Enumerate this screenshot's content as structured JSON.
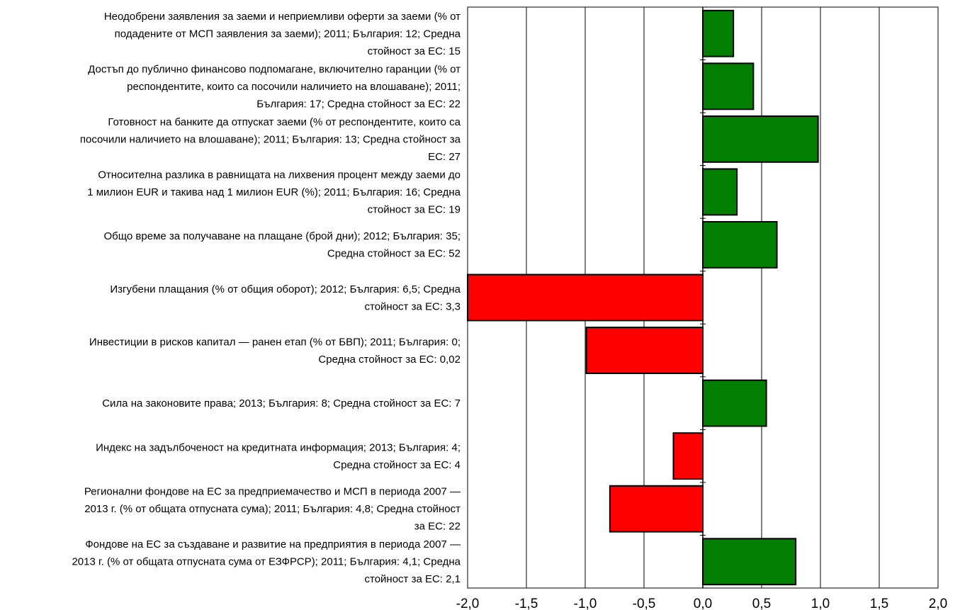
{
  "chart_data": {
    "type": "bar",
    "orientation": "horizontal",
    "categories": [
      "Неодобрени заявления за заеми и неприемливи оферти за заеми (% от подадените от МСП заявления за заеми); 2011; България: 12; Средна стойност за ЕС: 15",
      "Достъп до публично финансово подпомагане, включително гаранции (% от респондентите, които са посочили наличието на влошаване); 2011; България: 17; Средна стойност за ЕС: 22",
      "Готовност на банките да отпускат заеми (% от респондентите, които са посочили наличието на влошаване); 2011; България: 13; Средна стойност за ЕС: 27",
      "Относителна разлика в равнищата на лихвения процент между заеми до 1 милион EUR и такива над 1 милион EUR (%); 2011; България: 16; Средна стойност за ЕС: 19",
      "Общо време за получаване на плащане (брой дни); 2012; България: 35; Средна стойност за ЕС: 52",
      "Изгубени плащания (% от общия оборот); 2012; България: 6,5; Средна стойност за ЕС: 3,3",
      "Инвестиции в рисков капитал — ранен етап (% от БВП); 2011; България: 0; Средна стойност за ЕС: 0,02",
      "Сила на законовите права; 2013; България: 8; Средна стойност за ЕС: 7",
      "Индекс на задълбоченост на кредитната информация; 2013; България: 4; Средна стойност за ЕС: 4",
      "Регионални фондове на ЕС за предприемачество и МСП в периода 2007 — 2013 г. (% от общата отпусната сума); 2011; България: 4,8; Средна стойност за ЕС: 22",
      "Фондове на ЕС за създаване и развитие на предприятия в периода 2007 — 2013 г. (% от общата отпусната сума от ЕЗФРСР); 2011; България: 4,1; Средна стойност за ЕС: 2,1"
    ],
    "category_lines": [
      [
        "Неодобрени заявления за заеми и неприемливи оферти за заеми (% от",
        "подадените от МСП заявления за заеми); 2011; България: 12; Средна",
        "стойност за ЕС: 15"
      ],
      [
        "Достъп до публично финансово подпомагане, включително гаранции (% от",
        "респондентите, които са посочили наличието на влошаване); 2011;",
        "България: 17; Средна стойност за ЕС: 22"
      ],
      [
        "Готовност на банките да отпускат заеми (% от респондентите, които са",
        "посочили наличието на влошаване); 2011; България: 13; Средна стойност за",
        "ЕС: 27"
      ],
      [
        "Относителна разлика в равнищата на лихвения процент между заеми до",
        "1 милион EUR и такива над 1 милион EUR (%); 2011; България: 16; Средна",
        "стойност за ЕС: 19"
      ],
      [
        "Общо време за получаване на плащане (брой дни); 2012; България: 35;",
        "Средна стойност за ЕС: 52"
      ],
      [
        "Изгубени плащания (% от общия оборот); 2012; България: 6,5; Средна",
        "стойност за ЕС: 3,3"
      ],
      [
        "Инвестиции в рисков капитал — ранен етап (% от БВП); 2011; България: 0;",
        "Средна стойност за ЕС: 0,02"
      ],
      [
        "Сила на законовите права; 2013; България: 8; Средна стойност за ЕС: 7"
      ],
      [
        "Индекс на задълбоченост на кредитната информация; 2013; България: 4;",
        "Средна стойност за ЕС: 4"
      ],
      [
        "Регионални фондове на ЕС за предприемачество и МСП в периода 2007 —",
        "2013 г. (% от общата отпусната сума); 2011; България: 4,8; Средна стойност",
        "за ЕС: 22"
      ],
      [
        "Фондове на ЕС за създаване и развитие на предприятия в периода 2007 —",
        "2013 г. (% от общата отпусната сума от ЕЗФРСР); 2011; България: 4,1; Средна",
        "стойност за ЕС: 2,1"
      ]
    ],
    "values": [
      0.26,
      0.43,
      0.98,
      0.29,
      0.63,
      -2.0,
      -0.99,
      0.54,
      -0.25,
      -0.79,
      0.79
    ],
    "xlim": [
      -2.0,
      2.0
    ],
    "xticks": [
      -2.0,
      -1.5,
      -1.0,
      -0.5,
      0.0,
      0.5,
      1.0,
      1.5,
      2.0
    ],
    "xtick_labels": [
      "-2,0",
      "-1,5",
      "-1,0",
      "-0,5",
      "0,0",
      "0,5",
      "1,0",
      "1,5",
      "2,0"
    ],
    "title": "",
    "xlabel": "",
    "ylabel": "",
    "grid": "vertical",
    "colors": {
      "positive": "#007f00",
      "negative": "#ff0000",
      "border": "#000000",
      "grid": "#000000"
    }
  }
}
